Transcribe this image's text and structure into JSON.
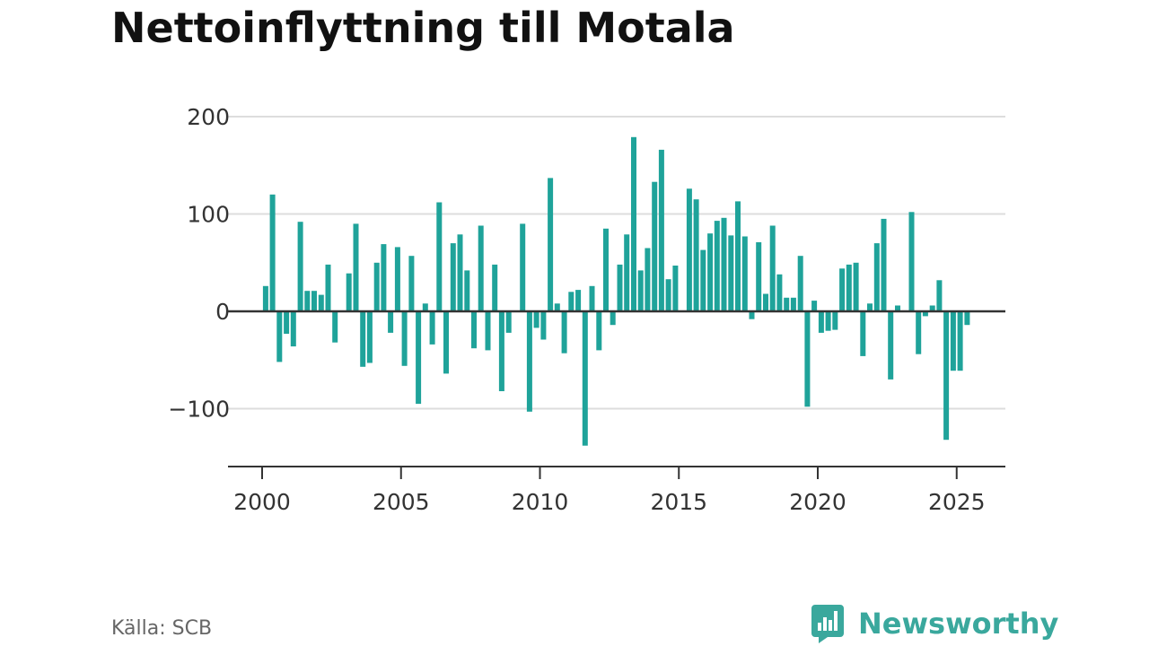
{
  "title": "Nettoinflyttning till Motala",
  "source": "Källa: SCB",
  "brand": {
    "name": "Newsworthy",
    "icon": "newsworthy-logo-icon",
    "color": "#3aa89d"
  },
  "colors": {
    "bar": "#1fa39a",
    "grid": "#dddddd",
    "axis": "#333333",
    "zero_line": "#333333"
  },
  "chart_data": {
    "type": "bar",
    "title": "Nettoinflyttning till Motala",
    "xlabel": "",
    "ylabel": "",
    "ylim": [
      -160,
      200
    ],
    "xlim": [
      1998.0,
      2026.75
    ],
    "y_ticks": [
      200,
      100,
      0,
      -100
    ],
    "y_tick_labels": [
      "200",
      "100",
      "0",
      "−100"
    ],
    "x_ticks": [
      2000,
      2005,
      2010,
      2015,
      2020,
      2025
    ],
    "x_tick_labels": [
      "2000",
      "2005",
      "2010",
      "2015",
      "2020",
      "2025"
    ],
    "grid": true,
    "frequency": "quarterly",
    "categories": [
      "2000 Q1",
      "2000 Q2",
      "2000 Q3",
      "2000 Q4",
      "2001 Q1",
      "2001 Q2",
      "2001 Q3",
      "2001 Q4",
      "2002 Q1",
      "2002 Q2",
      "2002 Q3",
      "2002 Q4",
      "2003 Q1",
      "2003 Q2",
      "2003 Q3",
      "2003 Q4",
      "2004 Q1",
      "2004 Q2",
      "2004 Q3",
      "2004 Q4",
      "2005 Q1",
      "2005 Q2",
      "2005 Q3",
      "2005 Q4",
      "2006 Q1",
      "2006 Q2",
      "2006 Q3",
      "2006 Q4",
      "2007 Q1",
      "2007 Q2",
      "2007 Q3",
      "2007 Q4",
      "2008 Q1",
      "2008 Q2",
      "2008 Q3",
      "2008 Q4",
      "2009 Q1",
      "2009 Q2",
      "2009 Q3",
      "2009 Q4",
      "2010 Q1",
      "2010 Q2",
      "2010 Q3",
      "2010 Q4",
      "2011 Q1",
      "2011 Q2",
      "2011 Q3",
      "2011 Q4",
      "2012 Q1",
      "2012 Q2",
      "2012 Q3",
      "2012 Q4",
      "2013 Q1",
      "2013 Q2",
      "2013 Q3",
      "2013 Q4",
      "2014 Q1",
      "2014 Q2",
      "2014 Q3",
      "2014 Q4",
      "2015 Q1",
      "2015 Q2",
      "2015 Q3",
      "2015 Q4",
      "2016 Q1",
      "2016 Q2",
      "2016 Q3",
      "2016 Q4",
      "2017 Q1",
      "2017 Q2",
      "2017 Q3",
      "2017 Q4",
      "2018 Q1",
      "2018 Q2",
      "2018 Q3",
      "2018 Q4",
      "2019 Q1",
      "2019 Q2",
      "2019 Q3",
      "2019 Q4",
      "2020 Q1",
      "2020 Q2",
      "2020 Q3",
      "2020 Q4",
      "2021 Q1",
      "2021 Q2",
      "2021 Q3",
      "2021 Q4",
      "2022 Q1",
      "2022 Q2",
      "2022 Q3",
      "2022 Q4",
      "2023 Q1",
      "2023 Q2",
      "2023 Q3",
      "2023 Q4",
      "2024 Q1",
      "2024 Q2",
      "2024 Q3",
      "2024 Q4",
      "2025 Q1",
      "2025 Q2"
    ],
    "values": [
      26,
      120,
      -52,
      -23,
      -36,
      92,
      21,
      21,
      17,
      48,
      -32,
      0,
      39,
      90,
      -57,
      -53,
      50,
      69,
      -22,
      66,
      -56,
      57,
      -95,
      8,
      -34,
      112,
      -64,
      70,
      79,
      42,
      -38,
      88,
      -40,
      48,
      -82,
      -22,
      0,
      90,
      -103,
      -17,
      -29,
      137,
      8,
      -43,
      20,
      22,
      -138,
      26,
      -40,
      85,
      -14,
      48,
      79,
      179,
      42,
      65,
      133,
      166,
      33,
      47,
      0,
      126,
      115,
      63,
      80,
      93,
      96,
      78,
      113,
      77,
      -8,
      71,
      18,
      88,
      38,
      14,
      14,
      57,
      -98,
      11,
      -22,
      -20,
      -19,
      44,
      48,
      50,
      -46,
      8,
      70,
      95,
      -70,
      6,
      0,
      102,
      -44,
      -5,
      6,
      32,
      -132,
      -61,
      -61,
      -14
    ]
  }
}
